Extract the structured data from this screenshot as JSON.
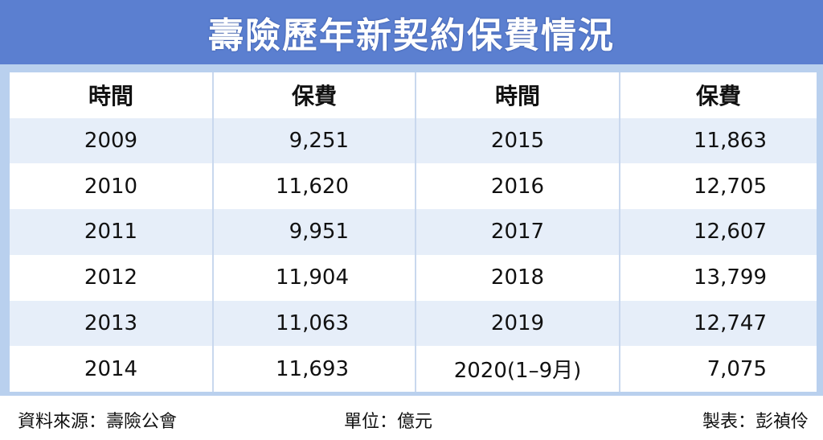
{
  "title": "壽險歷年新契約保費情況",
  "headers": [
    "時間",
    "保費",
    "時間",
    "保費"
  ],
  "rows": [
    [
      "2009",
      "9,251",
      "2015",
      "11,863"
    ],
    [
      "2010",
      "11,620",
      "2016",
      "12,705"
    ],
    [
      "2011",
      "9,951",
      "2017",
      "12,607"
    ],
    [
      "2012",
      "11,904",
      "2018",
      "13,799"
    ],
    [
      "2013",
      "11,063",
      "2019",
      "12,747"
    ],
    [
      "2014",
      "11,693",
      "2020(1–9月)",
      "7,075"
    ]
  ],
  "footer": {
    "source": "資料來源：壽險公會",
    "unit": "單位：億元",
    "maker": "製表：彭禎伶"
  },
  "colors": {
    "title_bg": "#5b7fd0",
    "frame_bg": "#b9d0ee",
    "stripe": "#e6eef9"
  }
}
